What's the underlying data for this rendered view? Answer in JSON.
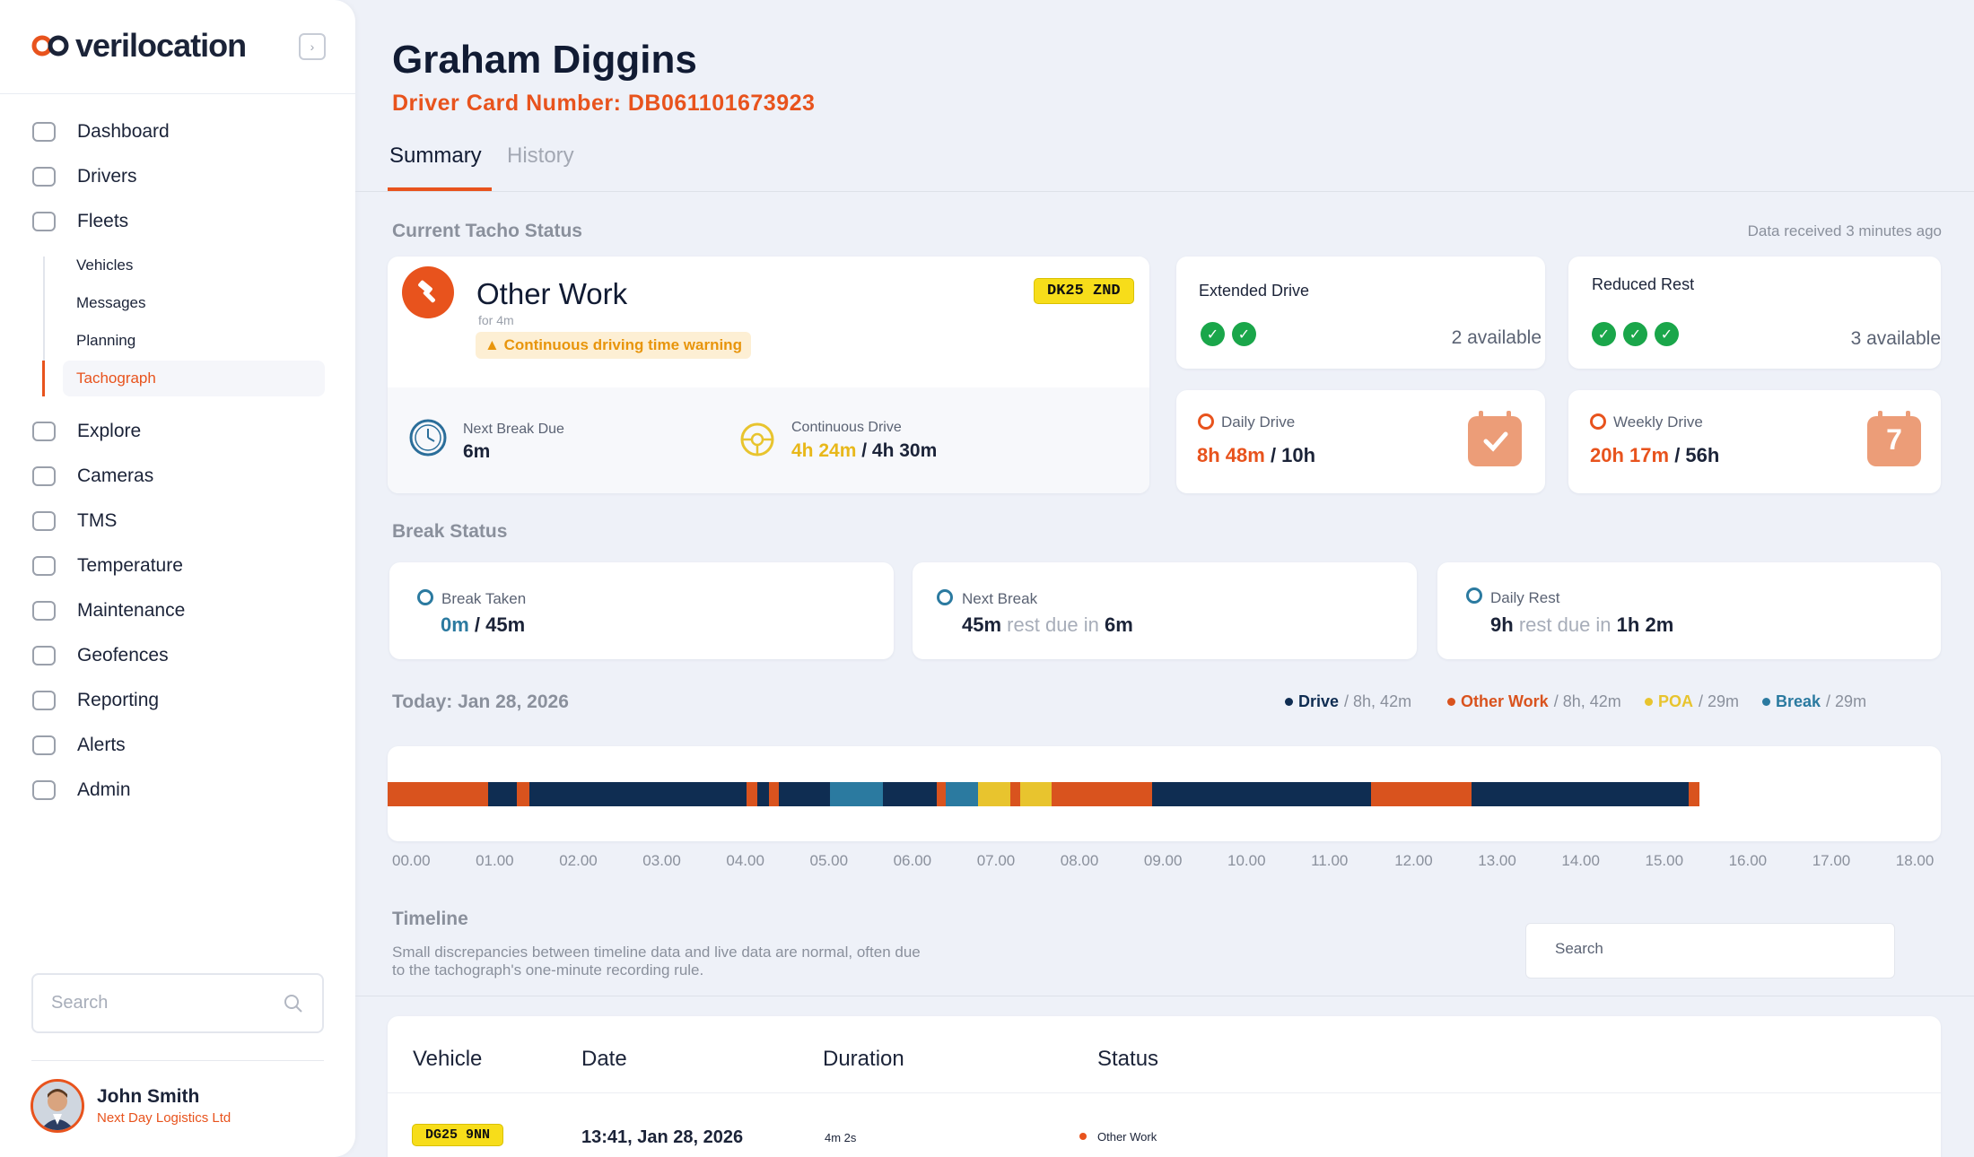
{
  "brand": {
    "name": "verilocation"
  },
  "sidebar": {
    "items": [
      {
        "label": "Dashboard",
        "icon": "speedometer-icon"
      },
      {
        "label": "Drivers",
        "icon": "id-card-icon"
      },
      {
        "label": "Fleets",
        "icon": "truck-icon"
      },
      {
        "label": "Explore",
        "icon": "lightbulb-icon"
      },
      {
        "label": "Cameras",
        "icon": "camera-icon"
      },
      {
        "label": "TMS",
        "icon": "map-pin-icon"
      },
      {
        "label": "Temperature",
        "icon": "snowflake-icon"
      },
      {
        "label": "Maintenance",
        "icon": "wrench-icon"
      },
      {
        "label": "Geofences",
        "icon": "geofence-icon"
      },
      {
        "label": "Reporting",
        "icon": "report-icon"
      },
      {
        "label": "Alerts",
        "icon": "warning-icon"
      },
      {
        "label": "Admin",
        "icon": "gear-icon"
      }
    ],
    "sub_items": [
      "Vehicles",
      "Messages",
      "Planning",
      "Tachograph"
    ],
    "search_placeholder": "Search"
  },
  "user": {
    "name": "John Smith",
    "org": "Next Day Logistics Ltd"
  },
  "driver": {
    "name": "Graham Diggins",
    "card_number": "Driver Card Number: DB061101673923"
  },
  "tabs": [
    "Summary",
    "History"
  ],
  "tacho": {
    "section_title": "Current Tacho Status",
    "data_received": "Data received 3 minutes ago",
    "status": "Other Work",
    "duration": "for 4m",
    "plate": "DK25 ZND",
    "warning": "Continuous driving time warning",
    "next_break_label": "Next Break Due",
    "next_break_value": "6m",
    "continuous_label": "Continuous Drive",
    "continuous_value": "4h 24m",
    "continuous_limit": "/ 4h 30m"
  },
  "extended_drive": {
    "label": "Extended Drive",
    "available": "2 available",
    "checks": 2
  },
  "reduced_rest": {
    "label": "Reduced Rest",
    "available": "3 available",
    "checks": 3
  },
  "daily_drive": {
    "label": "Daily Drive",
    "value": "8h 48m",
    "limit": "/ 10h"
  },
  "weekly_drive": {
    "label": "Weekly Drive",
    "value": "20h 17m",
    "limit": "/ 56h",
    "calendar_number": "7"
  },
  "break_status": {
    "title": "Break Status",
    "break_taken": {
      "label": "Break Taken",
      "value": "0m",
      "limit": "/ 45m"
    },
    "next_break": {
      "label": "Next Break",
      "value": "45m",
      "middle": "rest due in",
      "due": "6m"
    },
    "daily_rest": {
      "label": "Daily Rest",
      "value": "9h",
      "middle": "rest due in",
      "due": "1h 2m"
    }
  },
  "today": {
    "label": "Today: Jan 28, 2026",
    "legend": [
      {
        "name": "Drive",
        "value": "/ 8h, 42m",
        "color": "#0f2d52"
      },
      {
        "name": "Other Work",
        "value": "/ 8h, 42m",
        "color": "#d9531e"
      },
      {
        "name": "POA",
        "value": "/ 29m",
        "color": "#e8c42e"
      },
      {
        "name": "Break",
        "value": "/ 29m",
        "color": "#2b7aa0"
      }
    ],
    "hours": [
      "00.00",
      "01.00",
      "02.00",
      "03.00",
      "04.00",
      "05.00",
      "06.00",
      "07.00",
      "08.00",
      "09.00",
      "10.00",
      "11.00",
      "12.00",
      "13.00",
      "14.00",
      "15.00",
      "16.00",
      "17.00",
      "18.00"
    ],
    "segments": [
      {
        "type": "Other Work",
        "start": 0.0,
        "end": 1.2
      },
      {
        "type": "Drive",
        "start": 1.2,
        "end": 1.55
      },
      {
        "type": "Other Work",
        "start": 1.55,
        "end": 1.7
      },
      {
        "type": "Drive",
        "start": 1.7,
        "end": 4.3
      },
      {
        "type": "Other Work",
        "start": 4.3,
        "end": 4.43
      },
      {
        "type": "Drive",
        "start": 4.43,
        "end": 4.57
      },
      {
        "type": "Other Work",
        "start": 4.57,
        "end": 4.68
      },
      {
        "type": "Drive",
        "start": 4.68,
        "end": 5.3
      },
      {
        "type": "Break",
        "start": 5.3,
        "end": 5.93
      },
      {
        "type": "Drive",
        "start": 5.93,
        "end": 6.57
      },
      {
        "type": "Other Work",
        "start": 6.57,
        "end": 6.68
      },
      {
        "type": "Break",
        "start": 6.68,
        "end": 7.07
      },
      {
        "type": "POA",
        "start": 7.07,
        "end": 7.45
      },
      {
        "type": "Other Work",
        "start": 7.45,
        "end": 7.57
      },
      {
        "type": "POA",
        "start": 7.57,
        "end": 7.95
      },
      {
        "type": "Other Work",
        "start": 7.95,
        "end": 9.15
      },
      {
        "type": "Drive",
        "start": 9.15,
        "end": 11.77
      },
      {
        "type": "Other Work",
        "start": 11.77,
        "end": 12.97
      },
      {
        "type": "Drive",
        "start": 12.97,
        "end": 15.58
      },
      {
        "type": "Other Work",
        "start": 15.58,
        "end": 15.7
      }
    ]
  },
  "timeline": {
    "title": "Timeline",
    "note_line1": "Small discrepancies between timeline data and live data are normal, often due",
    "note_line2": "to the tachograph's one-minute recording rule.",
    "search_placeholder": "Search",
    "columns": [
      "Vehicle",
      "Date",
      "Duration",
      "Status"
    ],
    "rows": [
      {
        "vehicle": "DG25 9NN",
        "date": "13:41, Jan 28, 2026",
        "duration": "4m 2s",
        "status": "Other Work"
      }
    ]
  },
  "colors": {
    "accent": "#e8531d",
    "drive": "#0f2d52",
    "other_work": "#d9531e",
    "poa": "#e8c42e",
    "break": "#2b7aa0"
  }
}
